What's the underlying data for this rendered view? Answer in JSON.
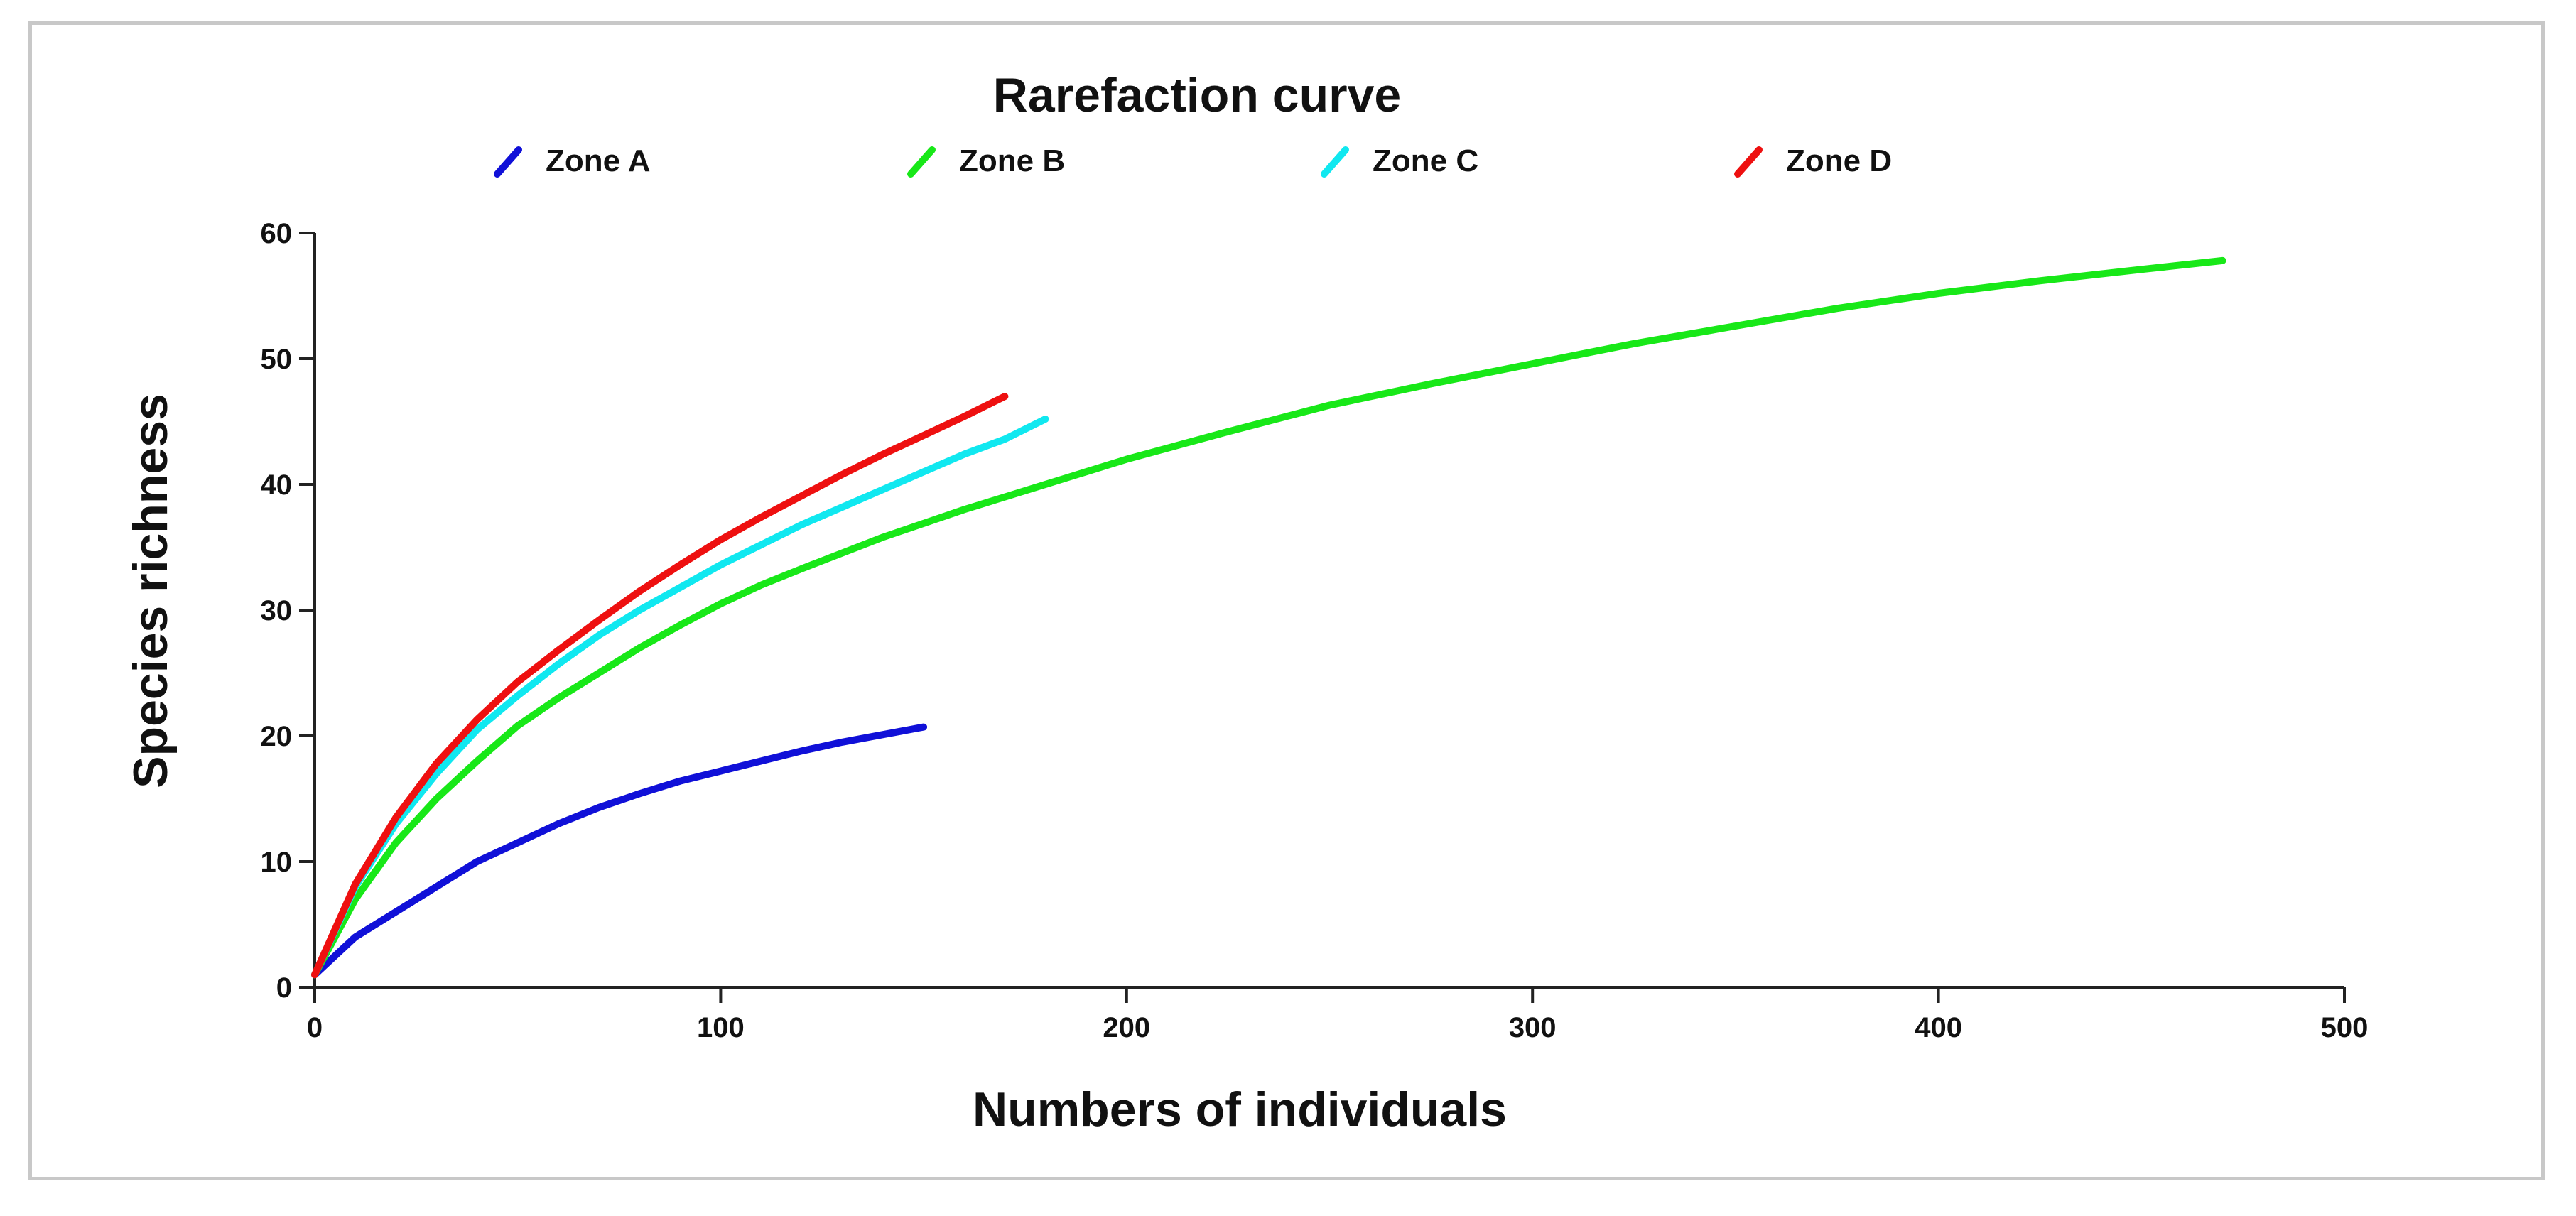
{
  "chart_data": {
    "type": "line",
    "title": "Rarefaction curve",
    "xlabel": "Numbers of individuals",
    "ylabel": "Species richness",
    "xlim": [
      0,
      500
    ],
    "ylim": [
      0,
      60
    ],
    "x_ticks": [
      "0",
      "100",
      "200",
      "300",
      "400",
      "500"
    ],
    "y_ticks": [
      "0",
      "10",
      "20",
      "30",
      "40",
      "50",
      "60"
    ],
    "grid": false,
    "legend_position": "top",
    "series": [
      {
        "name": "Zone A",
        "color": "#1010d8",
        "x": [
          0,
          10,
          20,
          30,
          40,
          50,
          60,
          70,
          80,
          90,
          100,
          110,
          120,
          130,
          140,
          150
        ],
        "y": [
          1,
          4,
          6,
          8,
          10,
          11.5,
          13,
          14.3,
          15.4,
          16.4,
          17.2,
          18,
          18.8,
          19.5,
          20.1,
          20.7
        ]
      },
      {
        "name": "Zone B",
        "color": "#18e818",
        "x": [
          0,
          10,
          20,
          30,
          40,
          50,
          60,
          70,
          80,
          90,
          100,
          110,
          120,
          140,
          160,
          180,
          200,
          225,
          250,
          275,
          300,
          325,
          350,
          375,
          400,
          425,
          450,
          470
        ],
        "y": [
          1,
          7,
          11.5,
          15,
          18,
          20.8,
          23,
          25,
          27,
          28.8,
          30.5,
          32,
          33.3,
          35.8,
          38,
          40,
          42,
          44.2,
          46.3,
          48,
          49.6,
          51.2,
          52.6,
          54,
          55.2,
          56.2,
          57.1,
          57.8
        ]
      },
      {
        "name": "Zone C",
        "color": "#10e8f0",
        "x": [
          0,
          10,
          20,
          30,
          40,
          50,
          60,
          70,
          80,
          90,
          100,
          110,
          120,
          130,
          140,
          150,
          160,
          170,
          180
        ],
        "y": [
          1,
          8,
          13,
          17,
          20.5,
          23.2,
          25.7,
          28,
          30,
          31.8,
          33.6,
          35.2,
          36.8,
          38.2,
          39.6,
          41,
          42.4,
          43.6,
          45.2
        ]
      },
      {
        "name": "Zone D",
        "color": "#ee1010",
        "x": [
          0,
          10,
          20,
          30,
          40,
          50,
          60,
          70,
          80,
          90,
          100,
          110,
          120,
          130,
          140,
          150,
          160,
          170
        ],
        "y": [
          1,
          8.2,
          13.5,
          17.8,
          21.3,
          24.3,
          26.8,
          29.2,
          31.5,
          33.6,
          35.6,
          37.4,
          39.1,
          40.8,
          42.4,
          43.9,
          45.4,
          47
        ]
      }
    ]
  }
}
